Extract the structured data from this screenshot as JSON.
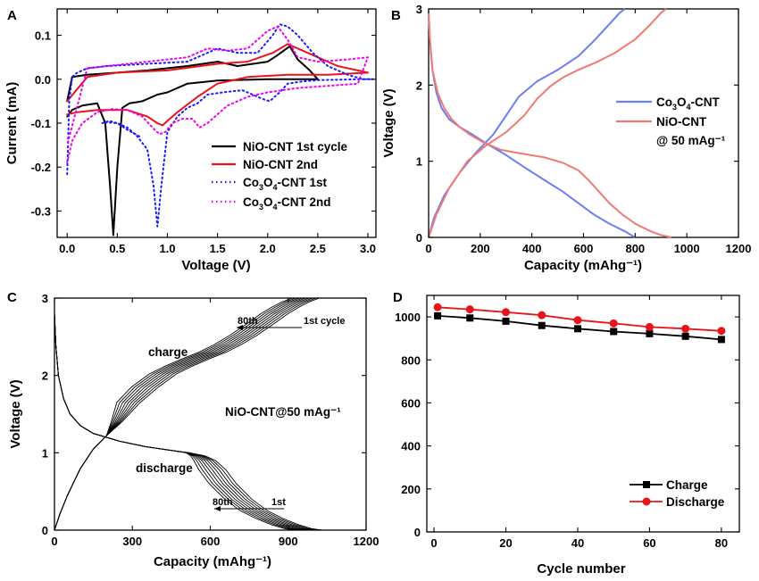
{
  "chart_data": [
    {
      "id": "A",
      "panel_label": "A",
      "type": "line",
      "title": "",
      "xlabel": "Voltage (V)",
      "ylabel": "Current (mA)",
      "xlim": [
        -0.1,
        3.08
      ],
      "ylim": [
        -0.36,
        0.16
      ],
      "xticks": [
        0.0,
        0.5,
        1.0,
        1.5,
        2.0,
        2.5,
        3.0
      ],
      "xtick_labels": [
        "0.0",
        "0.5",
        "1.0",
        "1.5",
        "2.0",
        "2.5",
        "3.0"
      ],
      "yticks": [
        -0.3,
        -0.2,
        -0.1,
        0.0,
        0.1
      ],
      "ytick_labels": [
        "-0.3",
        "-0.2",
        "-0.1",
        "0.0",
        "0.1"
      ],
      "legend_position": "bottom-right",
      "series": [
        {
          "name": "NiO-CNT 1st cycle",
          "label": {
            "pre": "NiO-CNT 1st cycle"
          },
          "color": "#000000",
          "dash": "",
          "x": [
            0.0,
            0.05,
            0.15,
            0.3,
            0.38,
            0.43,
            0.46,
            0.5,
            0.55,
            0.62,
            0.7,
            0.75,
            0.8,
            0.9,
            1.0,
            1.2,
            1.5,
            2.0,
            2.5,
            2.42,
            2.3,
            2.22,
            2.1,
            2.0,
            1.7,
            1.5,
            1.2,
            0.8,
            0.5,
            0.2,
            0.05,
            0.0
          ],
          "y": [
            -0.085,
            -0.07,
            -0.06,
            -0.055,
            -0.1,
            -0.25,
            -0.355,
            -0.2,
            -0.065,
            -0.055,
            -0.052,
            -0.05,
            -0.045,
            -0.035,
            -0.03,
            -0.01,
            -0.003,
            0.0,
            0.0,
            0.02,
            0.045,
            0.075,
            0.055,
            0.04,
            0.03,
            0.04,
            0.03,
            0.02,
            0.015,
            0.01,
            0.005,
            -0.05
          ]
        },
        {
          "name": "NiO-CNT 2nd",
          "label": {
            "pre": "NiO-CNT 2nd"
          },
          "color": "#e8141c",
          "dash": "",
          "x": [
            0.0,
            0.1,
            0.3,
            0.6,
            0.8,
            0.9,
            0.95,
            1.0,
            1.1,
            1.3,
            1.5,
            1.8,
            2.2,
            2.6,
            3.0,
            2.9,
            2.7,
            2.5,
            2.3,
            2.2,
            2.05,
            1.8,
            1.5,
            1.0,
            0.5,
            0.2,
            0.0
          ],
          "y": [
            -0.08,
            -0.075,
            -0.07,
            -0.07,
            -0.085,
            -0.1,
            -0.105,
            -0.095,
            -0.075,
            -0.04,
            -0.01,
            0.005,
            0.01,
            0.01,
            0.015,
            0.02,
            0.03,
            0.05,
            0.07,
            0.08,
            0.06,
            0.04,
            0.035,
            0.02,
            0.015,
            0.005,
            -0.05
          ]
        },
        {
          "name": "Co3O4-CNT 1st",
          "label": {
            "pre": "Co",
            "sub1": "3",
            "mid": "O",
            "sub2": "4",
            "post": "-CNT 1st"
          },
          "color": "#1a1aff",
          "dash": "1.5,3.5",
          "x": [
            0.72,
            0.68,
            0.6,
            0.5,
            0.42,
            0.35,
            0.4,
            0.5,
            0.6,
            0.7,
            0.8,
            0.86,
            0.9,
            0.94,
            1.0,
            1.1,
            1.2,
            1.3,
            1.4,
            1.55,
            1.75,
            1.95,
            2.02,
            2.12,
            2.2,
            2.35,
            2.5,
            2.7,
            2.9,
            3.0,
            3.05,
            2.95,
            2.8,
            2.6,
            2.45,
            2.3,
            2.2,
            2.12,
            2.05,
            1.9,
            1.7,
            1.5,
            1.2,
            0.8,
            0.4,
            0.2,
            0.1,
            0.05,
            0.02,
            0.0
          ],
          "y": [
            -0.13,
            -0.125,
            -0.115,
            -0.1,
            -0.095,
            -0.1,
            -0.098,
            -0.1,
            -0.11,
            -0.13,
            -0.16,
            -0.24,
            -0.335,
            -0.24,
            -0.12,
            -0.085,
            -0.065,
            -0.055,
            -0.035,
            -0.03,
            -0.025,
            -0.045,
            -0.05,
            -0.03,
            -0.01,
            -0.005,
            -0.002,
            -0.001,
            0.0,
            0.0,
            0.0,
            0.0,
            0.01,
            0.03,
            0.06,
            0.1,
            0.12,
            0.125,
            0.1,
            0.06,
            0.06,
            0.07,
            0.04,
            0.035,
            0.03,
            0.025,
            0.015,
            0.005,
            -0.05,
            -0.22
          ]
        },
        {
          "name": "Co3O4-CNT 2nd",
          "label": {
            "pre": "Co",
            "sub1": "3",
            "mid": "O",
            "sub2": "4",
            "post": "-CNT 2nd"
          },
          "color": "#ee00ee",
          "dash": "1.5,3.5",
          "x": [
            0.0,
            0.05,
            0.15,
            0.3,
            0.45,
            0.6,
            0.75,
            0.85,
            0.92,
            0.98,
            1.05,
            1.15,
            1.25,
            1.32,
            1.4,
            1.6,
            1.8,
            2.0,
            2.3,
            2.6,
            2.9,
            3.0,
            2.8,
            2.5,
            2.3,
            2.2,
            2.1,
            2.0,
            1.8,
            1.6,
            1.4,
            1.2,
            0.8,
            0.4,
            0.2,
            0.0
          ],
          "y": [
            -0.19,
            -0.14,
            -0.1,
            -0.075,
            -0.068,
            -0.07,
            -0.085,
            -0.11,
            -0.125,
            -0.12,
            -0.1,
            -0.09,
            -0.09,
            -0.11,
            -0.1,
            -0.06,
            -0.04,
            -0.03,
            -0.02,
            -0.015,
            -0.01,
            0.05,
            0.045,
            0.04,
            0.05,
            0.09,
            0.12,
            0.11,
            0.07,
            0.065,
            0.07,
            0.05,
            0.04,
            0.03,
            0.025,
            -0.15
          ]
        }
      ]
    },
    {
      "id": "B",
      "panel_label": "B",
      "type": "line",
      "title": "",
      "xlabel": "Capacity (mAhg⁻¹)",
      "ylabel": "Voltage (V)",
      "xlim": [
        0,
        1200
      ],
      "ylim": [
        0,
        3
      ],
      "xticks": [
        0,
        200,
        400,
        600,
        800,
        1000,
        1200
      ],
      "xtick_labels": [
        "0",
        "200",
        "400",
        "600",
        "800",
        "1000",
        "1200"
      ],
      "yticks": [
        0,
        1,
        2,
        3
      ],
      "ytick_labels": [
        "0",
        "1",
        "2",
        "3"
      ],
      "legend_position": "right",
      "annotation": "@ 50 mAg⁻¹",
      "series": [
        {
          "name": "Co3O4-CNT",
          "label": {
            "pre": "Co",
            "sub1": "3",
            "mid": "O",
            "sub2": "4",
            "post": "-CNT"
          },
          "color": "#6b7ff2",
          "dash": "",
          "x": [
            0,
            5,
            15,
            30,
            50,
            80,
            120,
            170,
            230,
            300,
            380,
            450,
            520,
            580,
            640,
            700,
            760,
            800
          ],
          "y": [
            2.95,
            2.6,
            2.2,
            1.9,
            1.7,
            1.55,
            1.45,
            1.35,
            1.22,
            1.08,
            0.9,
            0.75,
            0.6,
            0.45,
            0.3,
            0.18,
            0.08,
            0.0
          ]
        },
        {
          "name": "Co3O4-CNT charge",
          "label": {},
          "color": "#6b7ff2",
          "dash": "",
          "x": [
            0,
            20,
            60,
            120,
            180,
            250,
            300,
            350,
            420,
            500,
            580,
            640,
            700,
            740,
            760
          ],
          "y": [
            0.0,
            0.25,
            0.55,
            0.85,
            1.1,
            1.35,
            1.6,
            1.85,
            2.05,
            2.2,
            2.38,
            2.58,
            2.8,
            2.95,
            3.0
          ]
        },
        {
          "name": "NiO-CNT",
          "label": {
            "pre": "NiO-CNT"
          },
          "color": "#f07a72",
          "dash": "",
          "x": [
            0,
            5,
            15,
            35,
            60,
            90,
            120,
            160,
            210,
            280,
            360,
            450,
            520,
            580,
            620,
            660,
            700,
            750,
            800,
            860,
            900,
            940
          ],
          "y": [
            2.95,
            2.6,
            2.2,
            1.9,
            1.7,
            1.55,
            1.45,
            1.35,
            1.25,
            1.15,
            1.1,
            1.05,
            0.98,
            0.88,
            0.75,
            0.6,
            0.45,
            0.3,
            0.18,
            0.08,
            0.03,
            0.0
          ]
        },
        {
          "name": "NiO-CNT charge",
          "label": {},
          "color": "#f07a72",
          "dash": "",
          "x": [
            0,
            30,
            80,
            150,
            220,
            300,
            370,
            420,
            470,
            520,
            580,
            650,
            720,
            800,
            860,
            900,
            920
          ],
          "y": [
            0.0,
            0.3,
            0.65,
            1.0,
            1.2,
            1.38,
            1.6,
            1.82,
            1.98,
            2.1,
            2.2,
            2.3,
            2.42,
            2.6,
            2.8,
            2.95,
            3.0
          ]
        }
      ]
    },
    {
      "id": "C",
      "panel_label": "C",
      "type": "line",
      "title": "",
      "xlabel": "Capacity (mAhg⁻¹)",
      "ylabel": "Voltage (V)",
      "xlim": [
        0,
        1200
      ],
      "ylim": [
        0,
        3
      ],
      "xticks": [
        0,
        300,
        600,
        900,
        1200
      ],
      "xtick_labels": [
        "0",
        "300",
        "600",
        "900",
        "1200"
      ],
      "yticks": [
        0,
        1,
        2,
        3
      ],
      "ytick_labels": [
        "0",
        "1",
        "2",
        "3"
      ],
      "annotations": {
        "charge": "charge",
        "discharge": "discharge",
        "center": "NiO-CNT@50 mAg⁻¹",
        "charge_arrow_from": "1st cycle",
        "charge_arrow_to": "80th",
        "discharge_arrow_from": "1st",
        "discharge_arrow_to": "80th"
      },
      "cycles": [
        1,
        10,
        20,
        30,
        40,
        50,
        60,
        70,
        80
      ],
      "discharge_base": {
        "x": [
          0,
          5,
          15,
          35,
          60,
          100,
          150,
          250,
          350,
          450,
          520,
          580,
          620,
          660,
          700,
          760,
          820,
          880,
          940,
          990,
          1030
        ],
        "y": [
          2.8,
          2.4,
          2.0,
          1.7,
          1.5,
          1.35,
          1.25,
          1.15,
          1.08,
          1.03,
          1.0,
          0.96,
          0.9,
          0.78,
          0.6,
          0.4,
          0.25,
          0.15,
          0.07,
          0.02,
          0.0
        ]
      },
      "charge_base": {
        "x": [
          0,
          20,
          50,
          100,
          150,
          200,
          260,
          330,
          400,
          470,
          530,
          600,
          660,
          720,
          780,
          850,
          900,
          940,
          980,
          1020
        ],
        "y": [
          0.0,
          0.2,
          0.45,
          0.8,
          1.05,
          1.22,
          1.4,
          1.65,
          1.85,
          2.02,
          2.12,
          2.22,
          2.3,
          2.4,
          2.52,
          2.68,
          2.8,
          2.88,
          2.95,
          3.0
        ]
      },
      "capacity_shift_per_cycle_step": -13
    },
    {
      "id": "D",
      "panel_label": "D",
      "type": "line",
      "title": "",
      "xlabel": "Cycle number",
      "ylabel": "",
      "xlim": [
        -2,
        85
      ],
      "ylim": [
        0,
        1100
      ],
      "xticks": [
        0,
        20,
        40,
        60,
        80
      ],
      "xtick_labels": [
        "0",
        "20",
        "40",
        "60",
        "80"
      ],
      "yticks": [
        0,
        200,
        400,
        600,
        800,
        1000
      ],
      "ytick_labels": [
        "0",
        "200",
        "400",
        "600",
        "800",
        "1000"
      ],
      "legend_position": "bottom-right",
      "series": [
        {
          "name": "Charge",
          "label": {
            "pre": "Charge"
          },
          "color": "#000000",
          "marker": "square",
          "x": [
            1,
            10,
            20,
            30,
            40,
            50,
            60,
            70,
            80
          ],
          "y": [
            1005,
            995,
            980,
            960,
            945,
            932,
            922,
            910,
            895
          ]
        },
        {
          "name": "Discharge",
          "label": {
            "pre": "Discharge"
          },
          "color": "#e8141c",
          "marker": "circle",
          "x": [
            1,
            10,
            20,
            30,
            40,
            50,
            60,
            70,
            80
          ],
          "y": [
            1045,
            1035,
            1022,
            1008,
            985,
            970,
            953,
            945,
            935
          ]
        }
      ]
    }
  ]
}
